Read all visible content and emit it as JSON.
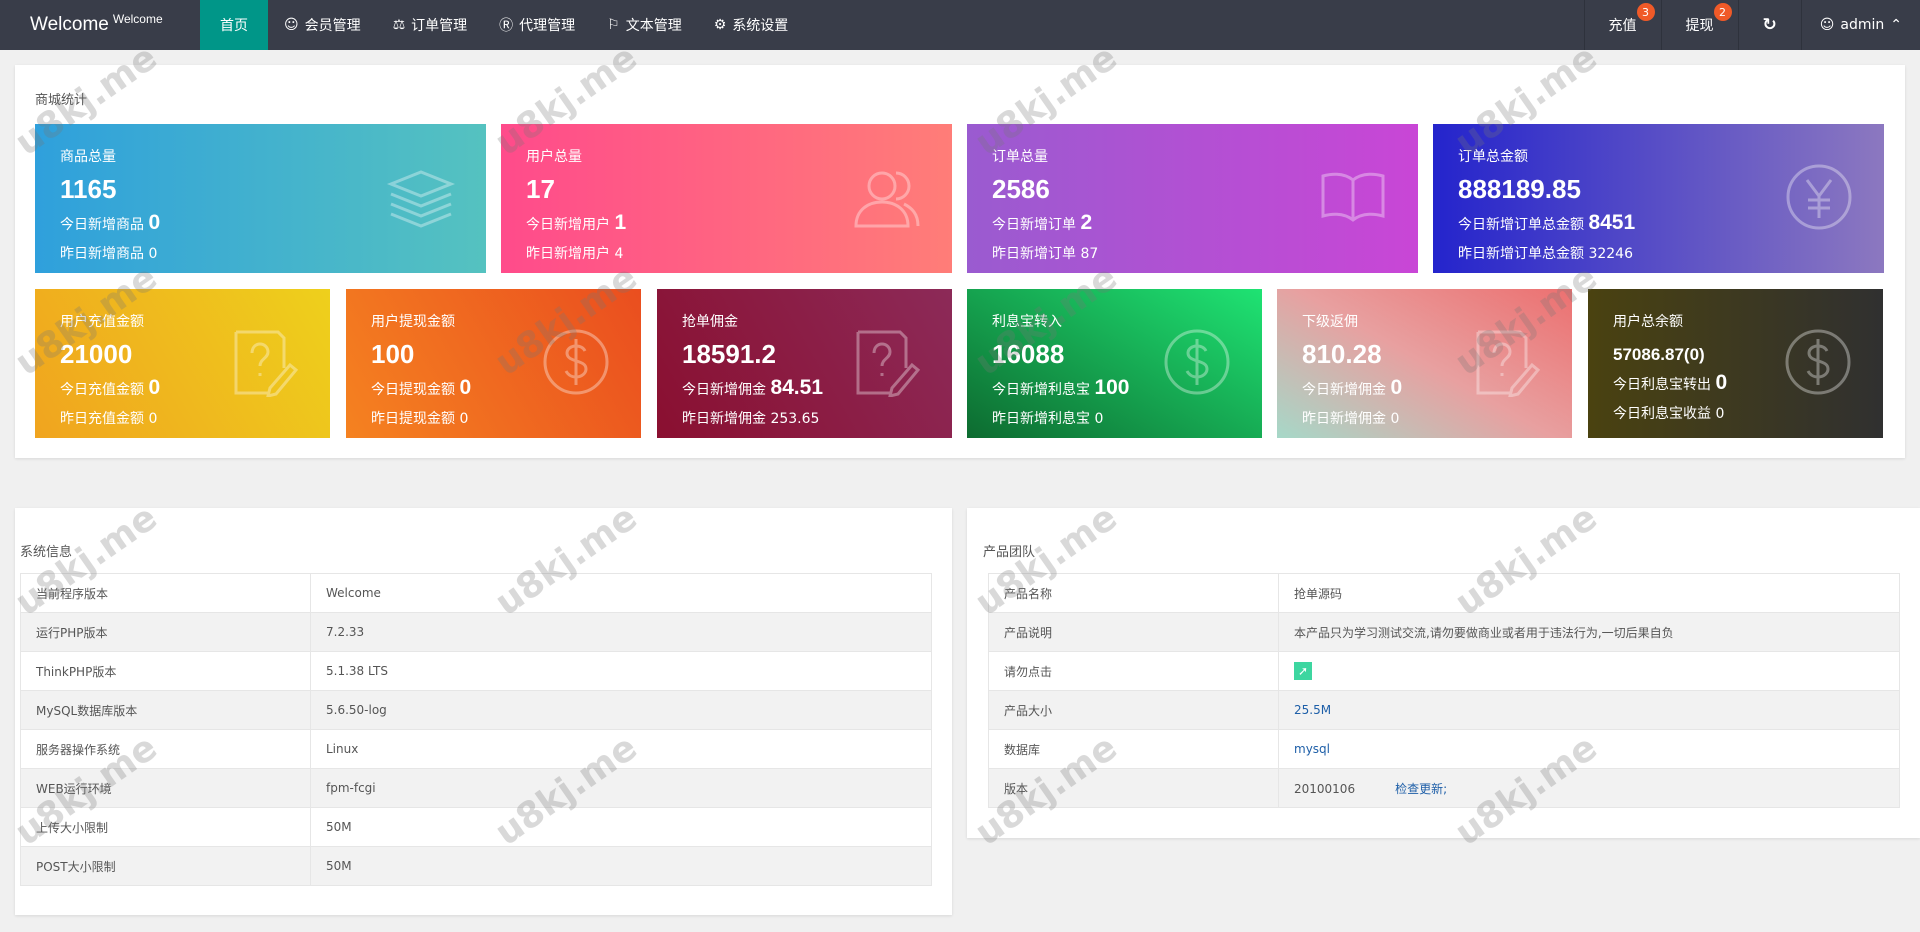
{
  "header": {
    "logo": "Welcome",
    "logo_sup": "Welcome",
    "nav": [
      "首页",
      "会员管理",
      "订单管理",
      "代理管理",
      "文本管理",
      "系统设置"
    ],
    "recharge": "充值",
    "recharge_badge": "3",
    "withdraw": "提现",
    "withdraw_badge": "2",
    "user": "admin",
    "accent": "#009688"
  },
  "stats": {
    "title": "商城统计",
    "cards": [
      {
        "title": "商品总量",
        "value": "1165",
        "l1": "今日新增商品",
        "l1v": "0",
        "l2": "昨日新增商品",
        "l2v": "0",
        "icon": "layers-icon"
      },
      {
        "title": "用户总量",
        "value": "17",
        "l1": "今日新增用户",
        "l1v": "1",
        "l2": "昨日新增用户",
        "l2v": "4",
        "icon": "users-icon"
      },
      {
        "title": "订单总量",
        "value": "2586",
        "l1": "今日新增订单",
        "l1v": "2",
        "l2": "昨日新增订单",
        "l2v": "87",
        "icon": "book-icon"
      },
      {
        "title": "订单总金额",
        "value": "888189.85",
        "l1": "今日新增订单总金额",
        "l1v": "8451",
        "l2": "昨日新增订单总金额",
        "l2v": "32246",
        "icon": "yen-icon"
      },
      {
        "title": "用户充值金额",
        "value": "21000",
        "l1": "今日充值金额",
        "l1v": "0",
        "l2": "昨日充值金额",
        "l2v": "0",
        "icon": "question-note-icon"
      },
      {
        "title": "用户提现金额",
        "value": "100",
        "l1": "今日提现金额",
        "l1v": "0",
        "l2": "昨日提现金额",
        "l2v": "0",
        "icon": "dollar-icon"
      },
      {
        "title": "抢单佣金",
        "value": "18591.2",
        "l1": "今日新增佣金",
        "l1v": "84.51",
        "l2": "昨日新增佣金",
        "l2v": "253.65",
        "icon": "question-note-icon"
      },
      {
        "title": "利息宝转入",
        "value": "16088",
        "l1": "今日新增利息宝",
        "l1v": "100",
        "l2": "昨日新增利息宝",
        "l2v": "0",
        "icon": "dollar-icon"
      },
      {
        "title": "下级返佣",
        "value": "810.28",
        "l1": "今日新增佣金",
        "l1v": "0",
        "l2": "昨日新增佣金",
        "l2v": "0",
        "icon": "question-note-icon"
      },
      {
        "title": "用户总余额",
        "value": "57086.87(0)",
        "l1": "今日利息宝转出",
        "l1v": "0",
        "l2": "今日利息宝收益",
        "l2v": "0",
        "icon": "dollar-icon"
      }
    ]
  },
  "system": {
    "title": "系统信息",
    "rows": [
      [
        "当前程序版本",
        "Welcome"
      ],
      [
        "运行PHP版本",
        "7.2.33"
      ],
      [
        "ThinkPHP版本",
        "5.1.38 LTS"
      ],
      [
        "MySQL数据库版本",
        "5.6.50-log"
      ],
      [
        "服务器操作系统",
        "Linux"
      ],
      [
        "WEB运行环境",
        "fpm-fcgi"
      ],
      [
        "上传大小限制",
        "50M"
      ],
      [
        "POST大小限制",
        "50M"
      ]
    ]
  },
  "product": {
    "title": "产品团队",
    "name_k": "产品名称",
    "name_v": "抢单源码",
    "desc_k": "产品说明",
    "desc_v": "本产品只为学习测试交流,请勿要做商业或者用于违法行为,一切后果自负",
    "click_k": "请勿点击",
    "size_k": "产品大小",
    "size_v": "25.5M",
    "db_k": "数据库",
    "db_v": "mysql",
    "ver_k": "版本",
    "ver_v": "20100106",
    "update": "检查更新;"
  },
  "watermark": "u8kj.me"
}
